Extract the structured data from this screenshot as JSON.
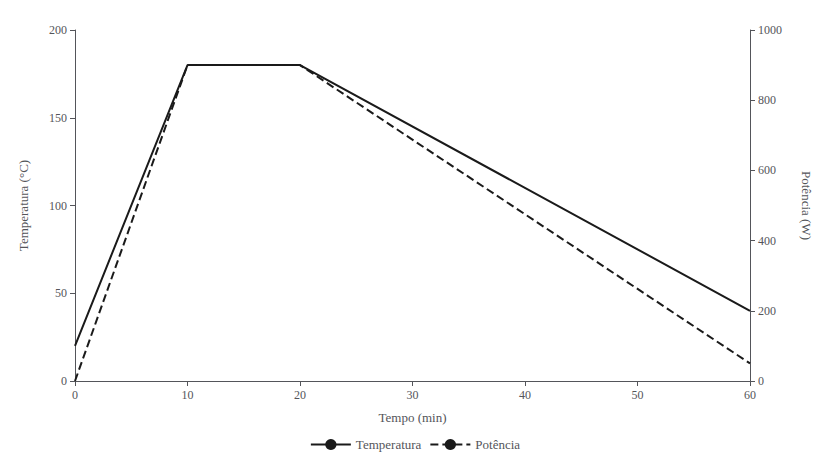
{
  "chart_data": {
    "type": "line",
    "xlabel": "Tempo (min)",
    "ylabel": "Temperatura (°C)",
    "y2label": "Potência (W)",
    "x": [
      0,
      10,
      20,
      60
    ],
    "series": [
      {
        "name": "Temperatura",
        "color": "#1a1a1a",
        "line_style": "solid",
        "values": [
          20,
          180,
          180,
          40
        ]
      },
      {
        "name": "Potência",
        "color": "#1a1a1a",
        "line_style": "dashed",
        "axis": "y2",
        "values": [
          0,
          900,
          900,
          50
        ]
      }
    ],
    "xlim": [
      0,
      60
    ],
    "xticks": [
      0,
      10,
      20,
      30,
      40,
      50,
      60
    ],
    "ylim": [
      0,
      200
    ],
    "yticks": [
      0,
      50,
      100,
      150,
      200
    ],
    "y2lim": [
      0,
      1000
    ],
    "y2ticks": [
      0,
      200,
      400,
      600,
      800,
      1000
    ],
    "grid": false,
    "legend": "bottom"
  }
}
